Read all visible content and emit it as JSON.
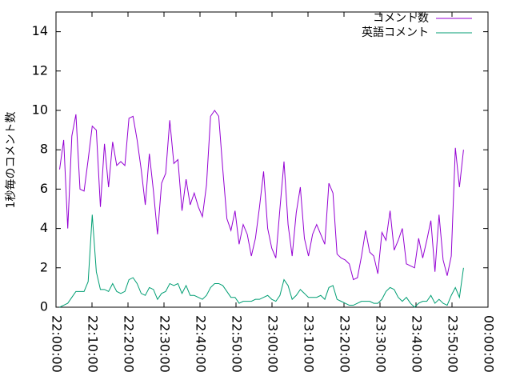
{
  "chart_data": {
    "type": "line",
    "ylabel": "1秒毎のコメント数",
    "x": [
      "22:01:00",
      "22:02:08",
      "22:03:16",
      "22:04:24",
      "22:05:32",
      "22:06:40",
      "22:07:48",
      "22:08:56",
      "22:10:04",
      "22:11:12",
      "22:12:20",
      "22:13:28",
      "22:14:36",
      "22:15:44",
      "22:16:52",
      "22:18:00",
      "22:19:08",
      "22:20:16",
      "22:21:24",
      "22:22:32",
      "22:23:40",
      "22:24:48",
      "22:25:56",
      "22:27:04",
      "22:28:12",
      "22:29:20",
      "22:30:28",
      "22:31:36",
      "22:32:44",
      "22:33:52",
      "22:35:00",
      "22:36:08",
      "22:37:16",
      "22:38:24",
      "22:39:32",
      "22:40:40",
      "22:41:48",
      "22:42:56",
      "22:44:04",
      "22:45:12",
      "22:46:20",
      "22:47:28",
      "22:48:36",
      "22:49:44",
      "22:50:52",
      "22:52:00",
      "22:53:08",
      "22:54:16",
      "22:55:24",
      "22:56:32",
      "22:57:40",
      "22:58:48",
      "22:59:56",
      "23:01:04",
      "23:02:12",
      "23:03:20",
      "23:04:28",
      "23:05:36",
      "23:06:44",
      "23:07:52",
      "23:09:00",
      "23:10:08",
      "23:11:16",
      "23:12:24",
      "23:13:32",
      "23:14:40",
      "23:15:48",
      "23:16:56",
      "23:18:04",
      "23:19:12",
      "23:20:20",
      "23:21:28",
      "23:22:36",
      "23:23:44",
      "23:24:52",
      "23:26:00",
      "23:27:08",
      "23:28:16",
      "23:29:24",
      "23:30:32",
      "23:31:40",
      "23:32:48",
      "23:33:56",
      "23:35:04",
      "23:36:12",
      "23:37:20",
      "23:38:28",
      "23:39:36",
      "23:40:44",
      "23:41:52",
      "23:43:00",
      "23:44:08",
      "23:45:16",
      "23:46:24",
      "23:47:32",
      "23:48:40",
      "23:49:48",
      "23:50:56",
      "23:52:04",
      "23:53:12"
    ],
    "series": [
      {
        "name": "コメント数",
        "color": "#9400d3",
        "values": [
          7.0,
          8.5,
          4.0,
          8.7,
          9.8,
          6.0,
          5.9,
          7.5,
          9.2,
          9.0,
          5.1,
          8.3,
          6.1,
          8.4,
          7.2,
          7.4,
          7.2,
          9.6,
          9.7,
          8.5,
          7.0,
          5.2,
          7.8,
          5.9,
          3.7,
          6.3,
          6.8,
          9.5,
          7.3,
          7.5,
          4.9,
          6.5,
          5.2,
          5.8,
          5.1,
          4.6,
          6.2,
          9.7,
          10.0,
          9.7,
          7.0,
          4.5,
          3.9,
          4.9,
          3.2,
          4.2,
          3.7,
          2.6,
          3.5,
          5.1,
          6.9,
          4.0,
          3.0,
          2.5,
          5.0,
          7.4,
          4.2,
          2.6,
          4.8,
          6.1,
          3.5,
          2.6,
          3.7,
          4.2,
          3.7,
          3.2,
          6.3,
          5.8,
          2.7,
          2.5,
          2.4,
          2.2,
          1.4,
          1.5,
          2.6,
          3.9,
          2.8,
          2.6,
          1.7,
          3.8,
          3.4,
          4.9,
          2.9,
          3.4,
          4.0,
          2.2,
          2.1,
          2.0,
          3.5,
          2.5,
          3.4,
          4.4,
          1.8,
          4.7,
          2.4,
          1.6,
          2.6,
          8.1,
          6.1,
          8.0
        ]
      },
      {
        "name": "英語コメント",
        "color": "#009e73",
        "values": [
          0.0,
          0.1,
          0.2,
          0.5,
          0.8,
          0.8,
          0.8,
          1.3,
          4.7,
          1.8,
          0.9,
          0.9,
          0.8,
          1.2,
          0.8,
          0.7,
          0.8,
          1.4,
          1.5,
          1.2,
          0.7,
          0.6,
          1.0,
          0.9,
          0.4,
          0.7,
          0.8,
          1.2,
          1.1,
          1.2,
          0.7,
          1.1,
          0.6,
          0.6,
          0.5,
          0.4,
          0.6,
          1.0,
          1.2,
          1.2,
          1.1,
          0.8,
          0.5,
          0.5,
          0.2,
          0.3,
          0.3,
          0.3,
          0.4,
          0.4,
          0.5,
          0.6,
          0.4,
          0.3,
          0.6,
          1.4,
          1.1,
          0.4,
          0.6,
          0.9,
          0.7,
          0.5,
          0.5,
          0.5,
          0.6,
          0.4,
          1.0,
          1.1,
          0.4,
          0.3,
          0.2,
          0.1,
          0.1,
          0.2,
          0.3,
          0.3,
          0.3,
          0.2,
          0.2,
          0.4,
          0.8,
          1.0,
          0.9,
          0.5,
          0.3,
          0.5,
          0.2,
          0.0,
          0.2,
          0.3,
          0.3,
          0.6,
          0.2,
          0.4,
          0.2,
          0.1,
          0.6,
          1.0,
          0.5,
          2.0
        ]
      }
    ],
    "xlim": [
      "22:00:00",
      "00:00:00"
    ],
    "xticks": [
      "22:00:00",
      "22:10:00",
      "22:20:00",
      "22:30:00",
      "22:40:00",
      "22:50:00",
      "23:00:00",
      "23:10:00",
      "23:20:00",
      "23:30:00",
      "23:40:00",
      "23:50:00",
      "00:00:00"
    ],
    "ylim": [
      0,
      15
    ],
    "yticks": [
      0,
      2,
      4,
      6,
      8,
      10,
      12,
      14
    ],
    "grid": false,
    "legend": "top-right"
  }
}
